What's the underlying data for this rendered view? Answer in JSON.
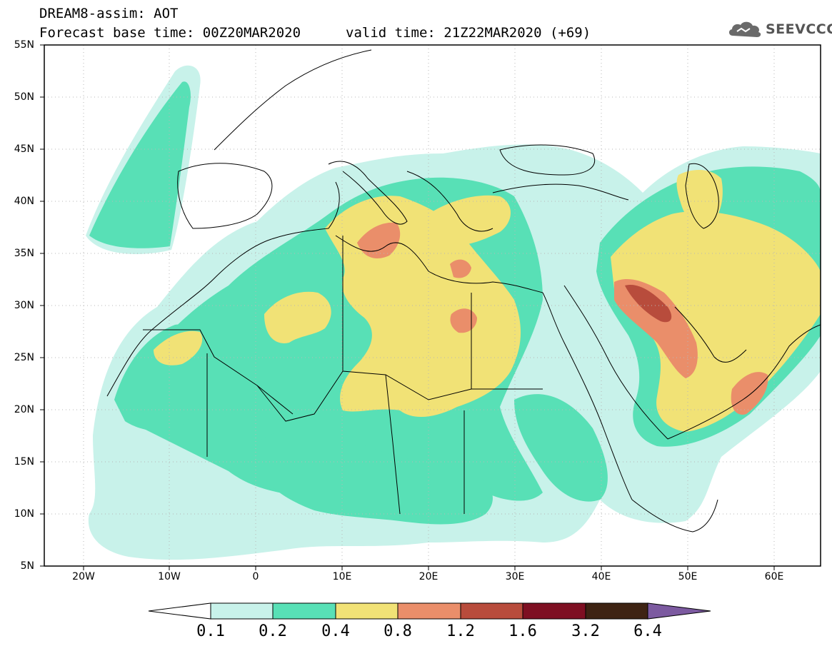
{
  "header": {
    "title": "DREAM8-assim: AOT",
    "base_time": "Forecast base time: 00Z20MAR2020",
    "valid_time": "valid time: 21Z22MAR2020 (+69)"
  },
  "logo": {
    "text": "SEEVCCC",
    "icon": "cloud-icon"
  },
  "map": {
    "lat_labels": [
      "55N",
      "50N",
      "45N",
      "40N",
      "35N",
      "30N",
      "25N",
      "20N",
      "15N",
      "10N",
      "5N"
    ],
    "lon_labels": [
      "20W",
      "10W",
      "0",
      "10E",
      "20E",
      "30E",
      "40E",
      "50E",
      "60E"
    ],
    "lat_range": [
      5,
      55
    ],
    "lon_range": [
      -25,
      65
    ],
    "grid": "dotted"
  },
  "colorbar": {
    "labels": [
      "0.1",
      "0.2",
      "0.4",
      "0.8",
      "1.2",
      "1.6",
      "3.2",
      "6.4"
    ],
    "colors": [
      "#ffffff",
      "#c8f2ea",
      "#58e0b6",
      "#f1e276",
      "#ea8e6a",
      "#b84c3c",
      "#7e0f22",
      "#3e2313",
      "#7c5aa0"
    ]
  }
}
